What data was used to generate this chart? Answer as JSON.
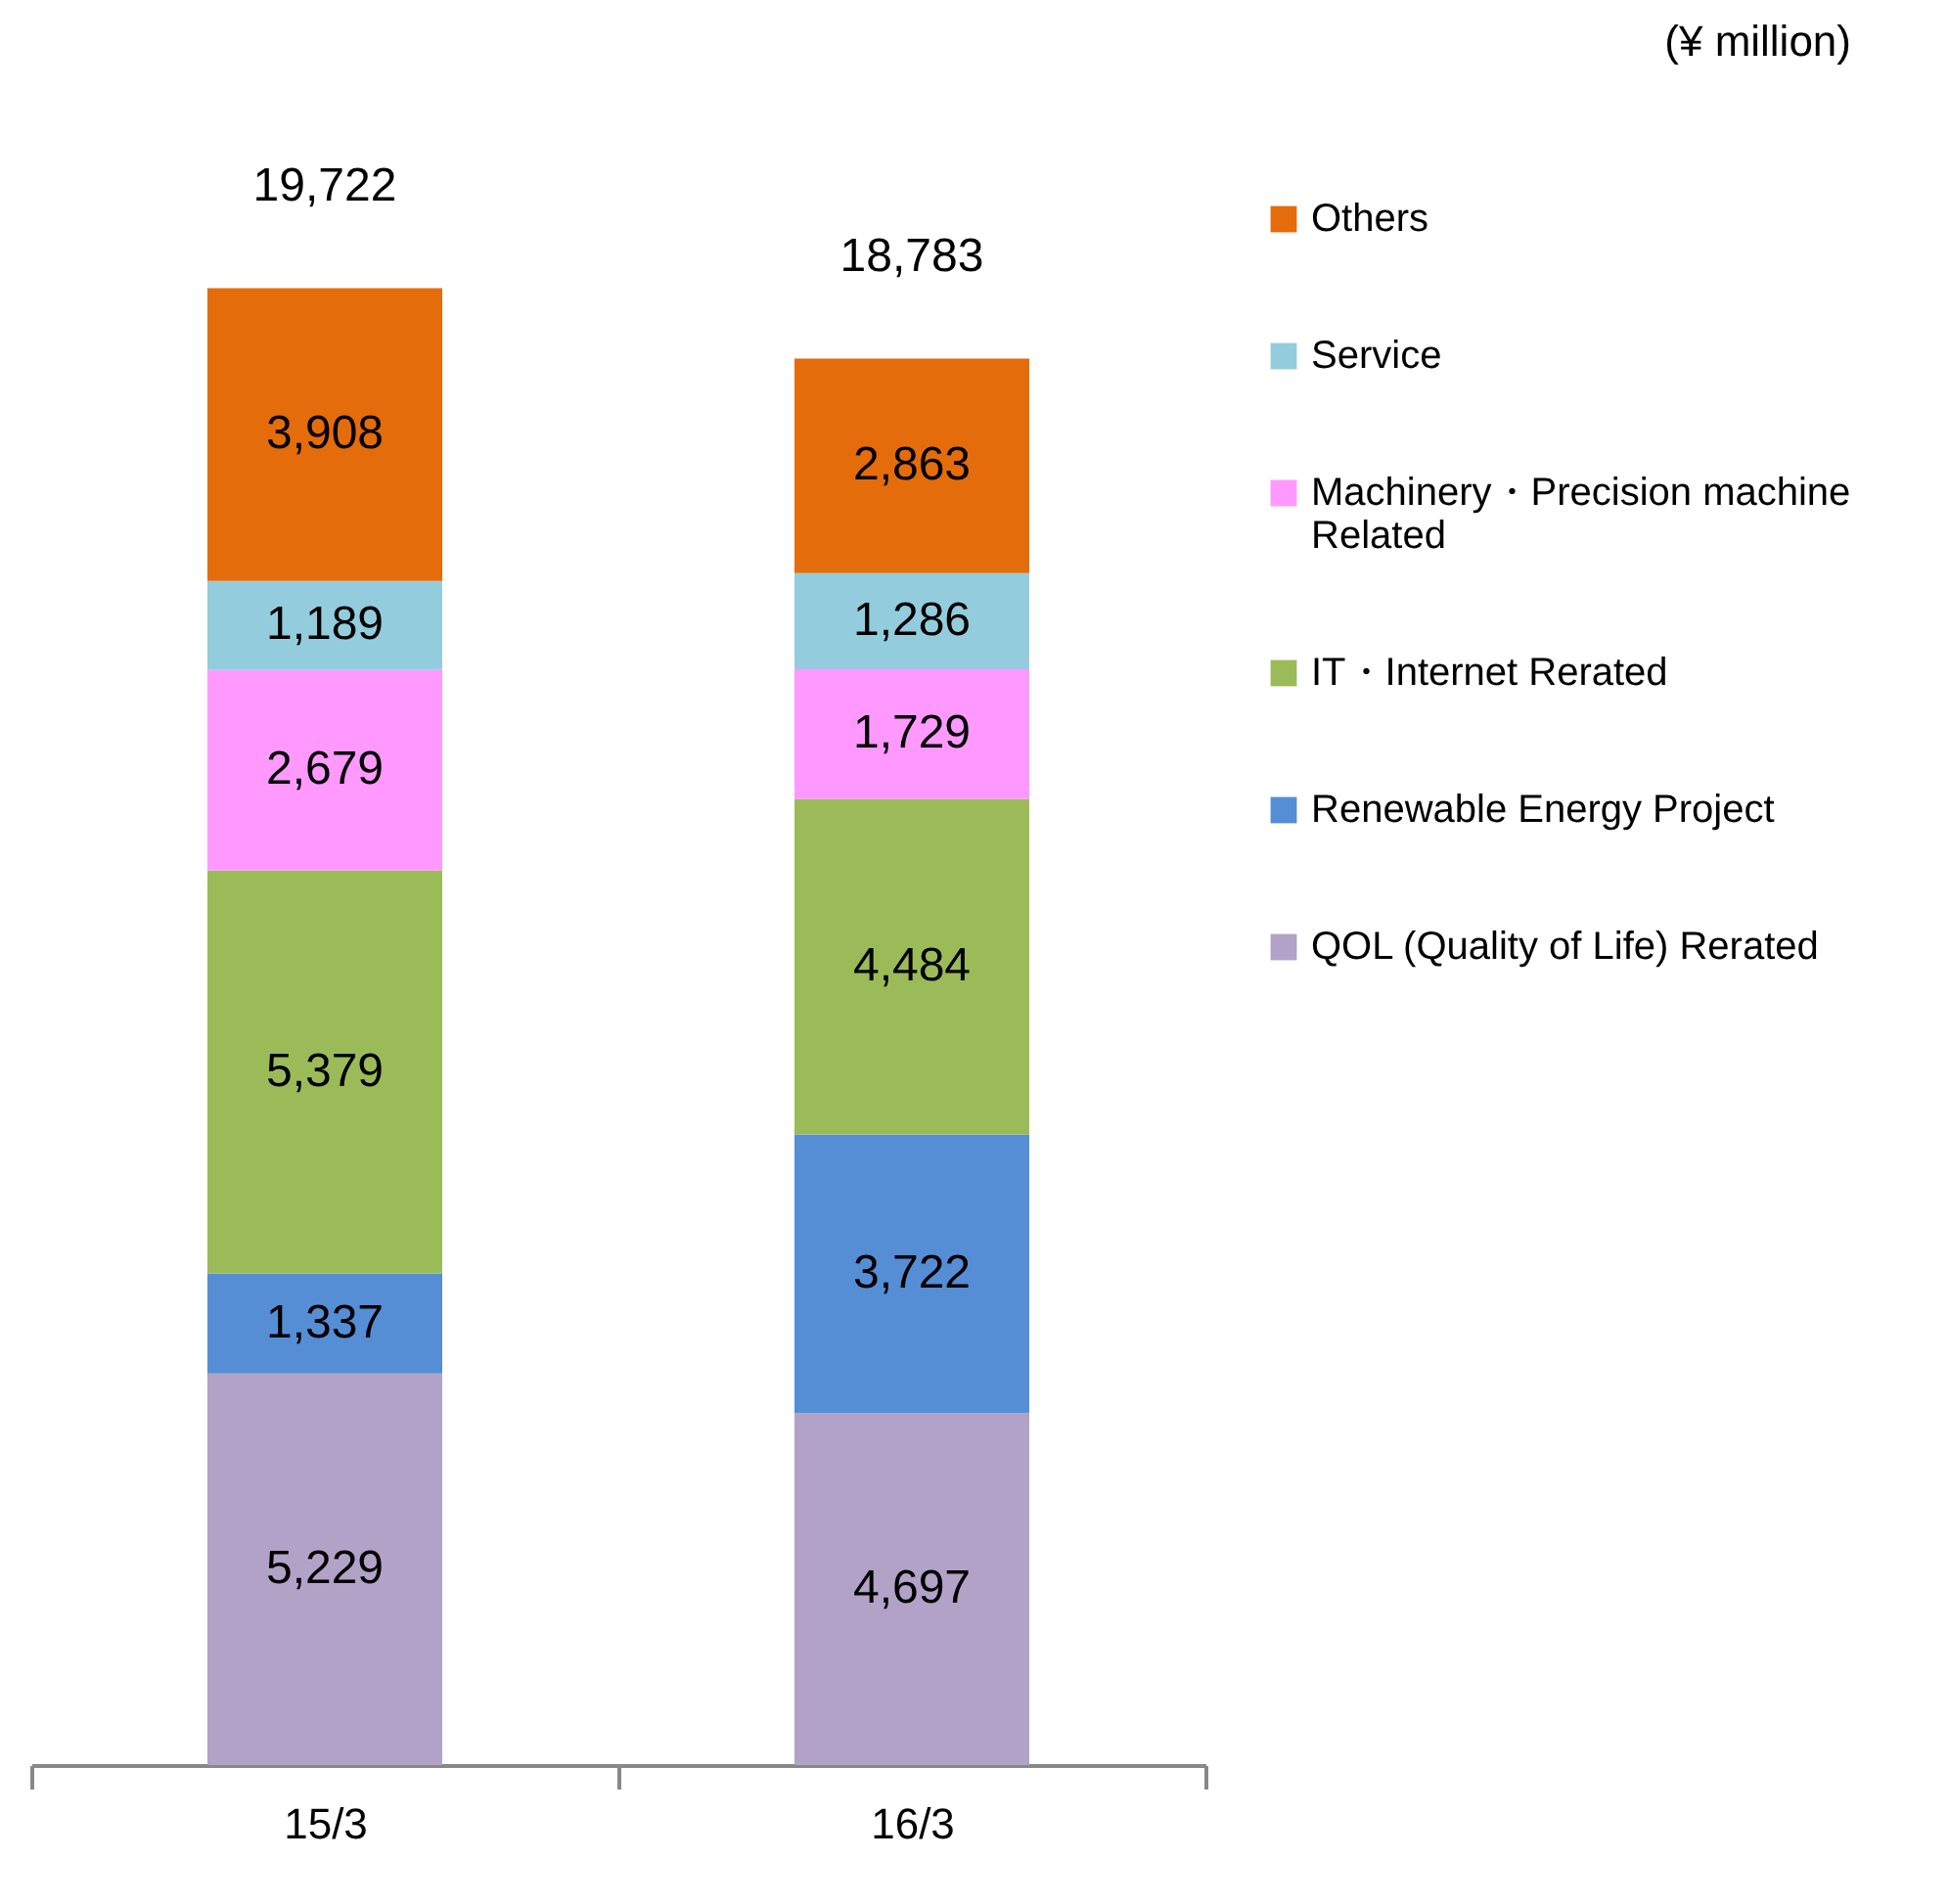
{
  "chart_data": {
    "type": "bar",
    "stacked": true,
    "legend": "right",
    "annotations": [
      "(¥ million)"
    ],
    "categories": [
      "15/3",
      "16/3"
    ],
    "totals": [
      "19,722",
      "18,783"
    ],
    "series": [
      {
        "name": "QOL (Quality of Life) Rerated",
        "color": "#b3a2c7",
        "values": [
          5229,
          4697
        ],
        "value_labels": [
          "5,229",
          "4,697"
        ]
      },
      {
        "name": "Renewable Energy Project",
        "color": "#558ed5",
        "values": [
          1337,
          3722
        ],
        "value_labels": [
          "1,337",
          "3,722"
        ]
      },
      {
        "name": "IT・Internet Rerated",
        "color": "#9bbb59",
        "values": [
          5379,
          4484
        ],
        "value_labels": [
          "5,379",
          "4,484"
        ]
      },
      {
        "name": "Machinery・Precision machine Related",
        "color": "#ff99ff",
        "values": [
          2679,
          1729
        ],
        "value_labels": [
          "2,679",
          "1,729"
        ]
      },
      {
        "name": "Service",
        "color": "#93cddd",
        "values": [
          1189,
          1286
        ],
        "value_labels": [
          "1,189",
          "1,286"
        ]
      },
      {
        "name": "Others",
        "color": "#e46c0a",
        "values": [
          3908,
          2863
        ],
        "value_labels": [
          "3,908",
          "2,863"
        ]
      }
    ]
  }
}
